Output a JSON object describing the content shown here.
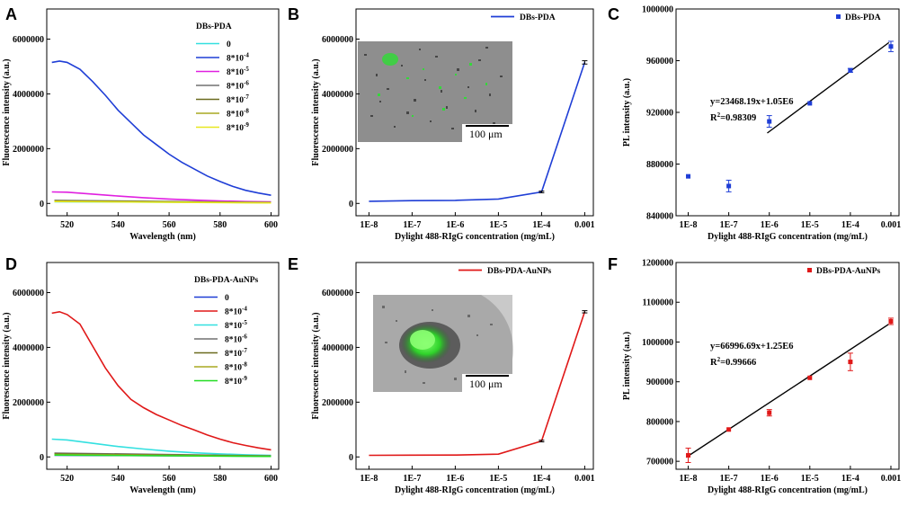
{
  "chart_data": [
    {
      "panel": "A",
      "type": "line",
      "xlabel": "Wavelength (nm)",
      "ylabel": "Fluorescence intensity (a.u.)",
      "xlim": [
        512,
        603
      ],
      "ylim": [
        -450000,
        7100000
      ],
      "xticks": [
        520,
        540,
        560,
        580,
        600
      ],
      "yticks": [
        0,
        2000000,
        4000000,
        6000000
      ],
      "legend_title": "DBs-PDA",
      "series": [
        {
          "name": "0",
          "color": "#33e0e0",
          "x": [
            515,
            600
          ],
          "y": [
            60000,
            30000
          ]
        },
        {
          "name": "8*10^-4",
          "color": "#1f3ed6",
          "x": [
            514,
            517,
            520,
            525,
            530,
            535,
            540,
            545,
            550,
            555,
            560,
            565,
            570,
            575,
            580,
            585,
            590,
            595,
            600
          ],
          "y": [
            5150000,
            5200000,
            5150000,
            4900000,
            4450000,
            3950000,
            3400000,
            2950000,
            2500000,
            2150000,
            1800000,
            1500000,
            1250000,
            1000000,
            800000,
            620000,
            480000,
            380000,
            300000
          ]
        },
        {
          "name": "8*10^-5",
          "color": "#e020e0",
          "x": [
            514,
            520,
            530,
            540,
            550,
            560,
            570,
            580,
            590,
            600
          ],
          "y": [
            420000,
            410000,
            340000,
            270000,
            210000,
            160000,
            120000,
            90000,
            70000,
            55000
          ]
        },
        {
          "name": "8*10^-6",
          "color": "#707070",
          "x": [
            515,
            600
          ],
          "y": [
            110000,
            35000
          ]
        },
        {
          "name": "8*10^-7",
          "color": "#6b6b1f",
          "x": [
            515,
            600
          ],
          "y": [
            95000,
            30000
          ]
        },
        {
          "name": "8*10^-8",
          "color": "#a8a820",
          "x": [
            515,
            600
          ],
          "y": [
            80000,
            25000
          ]
        },
        {
          "name": "8*10^-9",
          "color": "#e8e820",
          "x": [
            515,
            600
          ],
          "y": [
            70000,
            20000
          ]
        }
      ]
    },
    {
      "panel": "B",
      "type": "line",
      "xlabel": "Dylight 488-RIgG concentration (mg/mL)",
      "ylabel": "Fluorescence intensity (a.u.)",
      "xlim": [
        -8.3,
        -2.8
      ],
      "ylim": [
        -450000,
        7100000
      ],
      "xticks": [
        "1E-8",
        "1E-7",
        "1E-6",
        "1E-5",
        "1E-4",
        "0.001"
      ],
      "yticks": [
        0,
        2000000,
        4000000,
        6000000
      ],
      "series": [
        {
          "name": "DBs-PDA",
          "color": "#1f3ed6",
          "x": [
            -8,
            -7,
            -6,
            -5,
            -4,
            -3
          ],
          "y": [
            80000,
            100000,
            110000,
            160000,
            420000,
            5150000
          ],
          "err": [
            0,
            0,
            0,
            0,
            30000,
            60000
          ]
        }
      ],
      "inset_scale": "100 μm"
    },
    {
      "panel": "C",
      "type": "scatter",
      "xlabel": "Dylight 488-RIgG concentration (mg/mL)",
      "ylabel": "PL intensity (a.u.)",
      "xlim": [
        -8.3,
        -2.8
      ],
      "ylim": [
        840000,
        1000000
      ],
      "xticks": [
        "1E-8",
        "1E-7",
        "1E-6",
        "1E-5",
        "1E-4",
        "0.001"
      ],
      "yticks": [
        840000,
        880000,
        920000,
        960000,
        1000000
      ],
      "series": [
        {
          "name": "DBs-PDA",
          "color": "#1f3ed6",
          "x": [
            -8,
            -7,
            -6,
            -5,
            -4,
            -3
          ],
          "y": [
            870500,
            863000,
            913000,
            927000,
            952500,
            971000
          ],
          "err": [
            0,
            4500,
            4500,
            0,
            1500,
            4000
          ]
        }
      ],
      "fit": {
        "x": [
          -6.05,
          -3.05
        ],
        "y": [
          904000,
          974000
        ]
      },
      "equation": "y=23468.19x+1.05E6",
      "r2_label": "R",
      "r2_sup": "2",
      "r2_value": "=0.98309"
    },
    {
      "panel": "D",
      "type": "line",
      "xlabel": "Wavelength (nm)",
      "ylabel": "Fluorescence intensity (a.u.)",
      "xlim": [
        512,
        603
      ],
      "ylim": [
        -450000,
        7100000
      ],
      "xticks": [
        520,
        540,
        560,
        580,
        600
      ],
      "yticks": [
        0,
        2000000,
        4000000,
        6000000
      ],
      "legend_title": "DBs-PDA-AuNPs",
      "series": [
        {
          "name": "0",
          "color": "#1f3ed6",
          "x": [
            515,
            600
          ],
          "y": [
            60000,
            30000
          ]
        },
        {
          "name": "8*10^-4",
          "color": "#e01818",
          "x": [
            514,
            517,
            520,
            525,
            530,
            535,
            540,
            545,
            550,
            555,
            560,
            565,
            570,
            575,
            580,
            585,
            590,
            595,
            600
          ],
          "y": [
            5250000,
            5300000,
            5200000,
            4850000,
            4050000,
            3250000,
            2600000,
            2100000,
            1800000,
            1550000,
            1350000,
            1150000,
            980000,
            800000,
            650000,
            520000,
            420000,
            330000,
            260000
          ]
        },
        {
          "name": "8*10^-5",
          "color": "#33e0e0",
          "x": [
            514,
            520,
            530,
            540,
            550,
            560,
            570,
            580,
            590,
            600
          ],
          "y": [
            650000,
            620000,
            500000,
            380000,
            290000,
            210000,
            150000,
            110000,
            80000,
            60000
          ]
        },
        {
          "name": "8*10^-6",
          "color": "#707070",
          "x": [
            515,
            600
          ],
          "y": [
            140000,
            40000
          ]
        },
        {
          "name": "8*10^-7",
          "color": "#6b6b1f",
          "x": [
            515,
            600
          ],
          "y": [
            110000,
            30000
          ]
        },
        {
          "name": "8*10^-8",
          "color": "#a8a820",
          "x": [
            515,
            600
          ],
          "y": [
            90000,
            25000
          ]
        },
        {
          "name": "8*10^-9",
          "color": "#22dd22",
          "x": [
            515,
            600
          ],
          "y": [
            70000,
            20000
          ]
        }
      ]
    },
    {
      "panel": "E",
      "type": "line",
      "xlabel": "Dylight 488-RIgG concentration (mg/mL)",
      "ylabel": "Fluorescence intensity (a.u.)",
      "xlim": [
        -8.3,
        -2.8
      ],
      "ylim": [
        -450000,
        7100000
      ],
      "xticks": [
        "1E-8",
        "1E-7",
        "1E-6",
        "1E-5",
        "1E-4",
        "0.001"
      ],
      "yticks": [
        0,
        2000000,
        4000000,
        6000000
      ],
      "series": [
        {
          "name": "DBs-PDA-AuNPs",
          "color": "#e01818",
          "x": [
            -8,
            -7,
            -6,
            -5,
            -4,
            -3
          ],
          "y": [
            60000,
            65000,
            70000,
            100000,
            580000,
            5300000
          ],
          "err": [
            0,
            0,
            0,
            0,
            30000,
            40000
          ]
        }
      ],
      "inset_scale": "100 μm"
    },
    {
      "panel": "F",
      "type": "scatter",
      "xlabel": "Dylight 488-RIgG concentration (mg/mL)",
      "ylabel": "PL intensity (a.u.)",
      "xlim": [
        -8.3,
        -2.8
      ],
      "ylim": [
        680000,
        1200000
      ],
      "xticks": [
        "1E-8",
        "1E-7",
        "1E-6",
        "1E-5",
        "1E-4",
        "0.001"
      ],
      "yticks": [
        700000,
        800000,
        900000,
        1000000,
        1100000,
        1200000
      ],
      "series": [
        {
          "name": "DBs-PDA-AuNPs",
          "color": "#e01818",
          "x": [
            -8,
            -7,
            -6,
            -5,
            -4,
            -3
          ],
          "y": [
            715000,
            780000,
            822000,
            910000,
            950000,
            1052000
          ],
          "err": [
            18000,
            0,
            8000,
            0,
            22000,
            8000
          ]
        }
      ],
      "fit": {
        "x": [
          -8.05,
          -3.05
        ],
        "y": [
          710000,
          1045000
        ]
      },
      "equation": "y=66996.69x+1.25E6",
      "r2_label": "R",
      "r2_sup": "2",
      "r2_value": "=0.99666"
    }
  ]
}
